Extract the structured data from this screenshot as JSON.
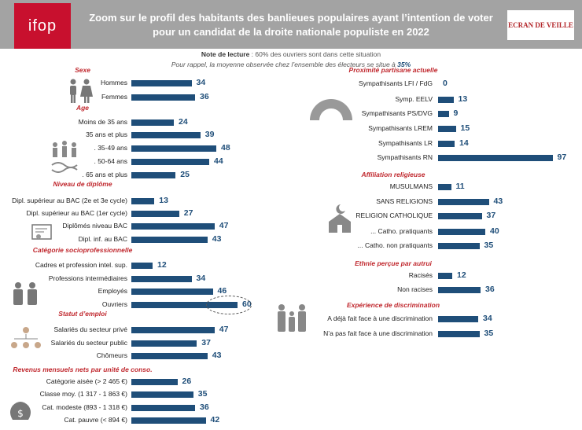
{
  "header": {
    "logo": "ifop",
    "title": "Zoom sur le profil des habitants des banlieues populaires ayant l’intention de voter pour un candidat de la droite nationale populiste en 2022",
    "badge": "ECRAN DE VEILLE"
  },
  "note": {
    "label": "Note de lecture",
    "line1": " : 60% des ouvriers sont dans cette situation",
    "line2": "Pour rappel, la moyenne observée chez l’ensemble des électeurs se situe à ",
    "average": "35%"
  },
  "colors": {
    "bar": "#1f4e79",
    "section_title": "#c0282e",
    "header": "#a3a3a3",
    "logo": "#c8102e"
  },
  "chart_data": {
    "type": "bar",
    "orientation": "horizontal",
    "unit": "%",
    "average": 35,
    "sections": [
      {
        "title": "Sexe",
        "icon": "gender-icon",
        "column": "left",
        "items": [
          {
            "label": "Hommes",
            "value": 34
          },
          {
            "label": "Femmes",
            "value": 36
          }
        ]
      },
      {
        "title": "Age",
        "icon": "age-icon",
        "column": "left",
        "items": [
          {
            "label": "Moins de 35 ans",
            "value": 24
          },
          {
            "label": "35 ans et plus",
            "value": 39
          },
          {
            "label": ". 35-49 ans",
            "value": 48
          },
          {
            "label": ". 50-64 ans",
            "value": 44
          },
          {
            "label": ". 65 ans et plus",
            "value": 25
          }
        ]
      },
      {
        "title": "Niveau de diplôme",
        "icon": "diploma-icon",
        "column": "left",
        "items": [
          {
            "label": "Dipl. supérieur au BAC (2e et 3e  cycle)",
            "value": 13
          },
          {
            "label": "Dipl. supérieur au BAC (1er cycle)",
            "value": 27
          },
          {
            "label": "Diplômés niveau BAC",
            "value": 47
          },
          {
            "label": "Dipl. inf. au BAC",
            "value": 43
          }
        ]
      },
      {
        "title": "Catégorie socioprofessionnelle",
        "icon": "worker-icon",
        "column": "left",
        "items": [
          {
            "label": "Cadres et profession intel. sup.",
            "value": 12
          },
          {
            "label": "Professions intermédiaires",
            "value": 34
          },
          {
            "label": "Employés",
            "value": 46
          },
          {
            "label": "Ouvriers",
            "value": 60,
            "highlight": true
          }
        ]
      },
      {
        "title": "Statut d’emploi",
        "icon": "org-chart-icon",
        "column": "left",
        "items": [
          {
            "label": "Salariés du secteur privé",
            "value": 47
          },
          {
            "label": "Salariés du secteur public",
            "value": 37
          },
          {
            "label": "Chômeurs",
            "value": 43
          }
        ]
      },
      {
        "title": "Revenus mensuels nets par unité de conso.",
        "icon": "money-icon",
        "column": "left",
        "items": [
          {
            "label": "Catégorie aisée (> 2 465 €)",
            "value": 26
          },
          {
            "label": "Classe moy. (1 317 - 1 863 €)",
            "value": 35
          },
          {
            "label": "Cat. modeste (893 - 1 318 €)",
            "value": 36
          },
          {
            "label": "Cat. pauvre (< 894 €)",
            "value": 42
          }
        ]
      },
      {
        "title": "Proximité partisane actuelle",
        "icon": "parliament-icon",
        "column": "right",
        "items": [
          {
            "label": "Sympathisants LFI / FdG",
            "value": 0
          },
          {
            "label": "Symp.  EELV",
            "value": 13
          },
          {
            "label": "Sympathisants PS/DVG",
            "value": 9
          },
          {
            "label": "Sympathisants LREM",
            "value": 15
          },
          {
            "label": "Sympathisants LR",
            "value": 14
          },
          {
            "label": "Sympathisants RN",
            "value": 97
          }
        ]
      },
      {
        "title": "Affiliation religieuse",
        "icon": "religion-icon",
        "column": "right",
        "items": [
          {
            "label": "MUSULMANS",
            "value": 11
          },
          {
            "label": "SANS RELIGIONS",
            "value": 43
          },
          {
            "label": "RELIGION CATHOLIQUE",
            "value": 37
          },
          {
            "label": "... Catho. pratiquants",
            "value": 40
          },
          {
            "label": "... Catho. non pratiquants",
            "value": 35
          }
        ]
      },
      {
        "title": "Ethnie perçue par autrui",
        "icon": "",
        "column": "right",
        "items": [
          {
            "label": "Racisés",
            "value": 12
          },
          {
            "label": "Non racises",
            "value": 36
          }
        ]
      },
      {
        "title": "Expérience de discrimination",
        "icon": "family-icon",
        "column": "right",
        "items": [
          {
            "label": "A déjà fait face à une discrimination",
            "value": 34
          },
          {
            "label": "N’a pas fait face à une discrimination",
            "value": 35
          }
        ]
      }
    ]
  }
}
